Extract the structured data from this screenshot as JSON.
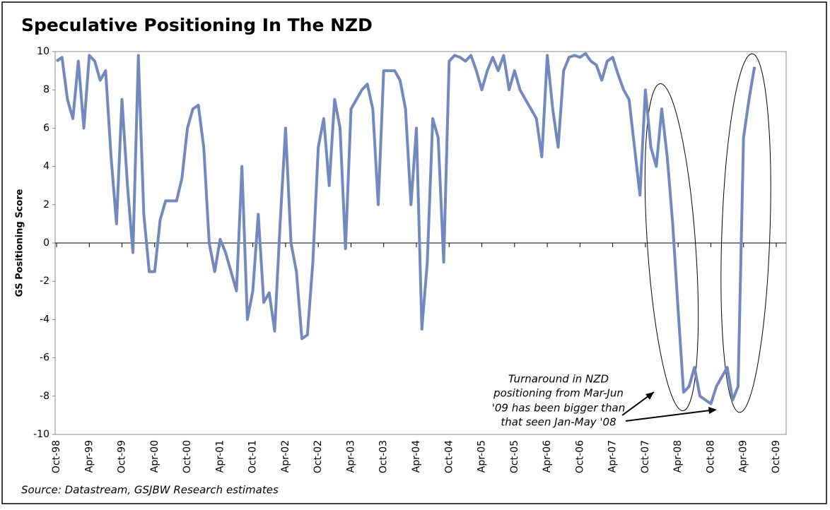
{
  "chart_data": {
    "type": "line",
    "title": "Speculative Positioning In The NZD",
    "y_label": "GS Positioning Score",
    "source": "Source: Datastream, GSJBW Research estimates",
    "annotation": [
      "Turnaround in NZD",
      "positioning from Mar-Jun",
      "'09 has been bigger than",
      "that seen Jan-May '08"
    ],
    "categories": [
      "Oct-98",
      null,
      null,
      null,
      null,
      null,
      "Apr-99",
      null,
      null,
      null,
      null,
      null,
      "Oct-99",
      null,
      null,
      null,
      null,
      null,
      "Apr-00",
      null,
      null,
      null,
      null,
      null,
      "Oct-00",
      null,
      null,
      null,
      null,
      null,
      "Apr-01",
      null,
      null,
      null,
      null,
      null,
      "Oct-01",
      null,
      null,
      null,
      null,
      null,
      "Apr-02",
      null,
      null,
      null,
      null,
      null,
      "Oct-02",
      null,
      null,
      null,
      null,
      null,
      "Apr-03",
      null,
      null,
      null,
      null,
      null,
      "Oct-03",
      null,
      null,
      null,
      null,
      null,
      "Apr-04",
      null,
      null,
      null,
      null,
      null,
      "Oct-04",
      null,
      null,
      null,
      null,
      null,
      "Apr-05",
      null,
      null,
      null,
      null,
      null,
      "Oct-05",
      null,
      null,
      null,
      null,
      null,
      "Apr-06",
      null,
      null,
      null,
      null,
      null,
      "Oct-06",
      null,
      null,
      null,
      null,
      null,
      "Apr-07",
      null,
      null,
      null,
      null,
      null,
      "Oct-07",
      null,
      null,
      null,
      null,
      null,
      "Apr-08",
      null,
      null,
      null,
      null,
      null,
      "Oct-08",
      null,
      null,
      null,
      null,
      null,
      "Apr-09",
      null,
      null,
      null,
      null,
      null,
      "Oct-09"
    ],
    "series": [
      {
        "name": "GS Positioning Score",
        "color": "#7189bf",
        "values": [
          9.5,
          9.7,
          7.5,
          6.5,
          9.5,
          6,
          9.8,
          9.5,
          8.5,
          9,
          4.5,
          1,
          7.5,
          3,
          -0.5,
          9.8,
          1.5,
          -1.5,
          -1.5,
          1.2,
          2.2,
          2.2,
          2.2,
          3.4,
          6,
          7,
          7.2,
          5,
          0,
          -1.5,
          0.2,
          -0.5,
          -1.5,
          -2.5,
          4,
          -4,
          -2.5,
          1.5,
          -3.1,
          -2.6,
          -4.6,
          1,
          6,
          0,
          -1.5,
          -5,
          -4.8,
          -1,
          5,
          6.5,
          3,
          7.5,
          6,
          -0.3,
          7,
          7.5,
          8,
          8.3,
          7,
          2,
          9,
          9,
          9,
          8.5,
          7,
          2,
          6,
          -4.5,
          -1,
          6.5,
          5.5,
          -1,
          9.5,
          9.8,
          9.7,
          9.5,
          9.8,
          9,
          8,
          9,
          9.7,
          9,
          9.8,
          8,
          9,
          8,
          7.5,
          7,
          6.5,
          4.5,
          9.8,
          7,
          5,
          9,
          9.7,
          9.8,
          9.7,
          9.9,
          9.5,
          9.3,
          8.5,
          9.5,
          9.7,
          8.8,
          8,
          7.5,
          5,
          2.5,
          8,
          5,
          4,
          7,
          4.5,
          1,
          -3.5,
          -7.8,
          -7.5,
          -6.5,
          -8,
          -8.2,
          -8.4,
          -7.5,
          -7,
          -6.5,
          -8.2,
          -7.5,
          5.5,
          7.5,
          9.2,
          null,
          null,
          null,
          null
        ]
      }
    ],
    "ylim": [
      -10,
      10
    ],
    "yticks": [
      -10,
      -8,
      -6,
      -4,
      -2,
      0,
      2,
      4,
      6,
      8,
      10
    ]
  }
}
